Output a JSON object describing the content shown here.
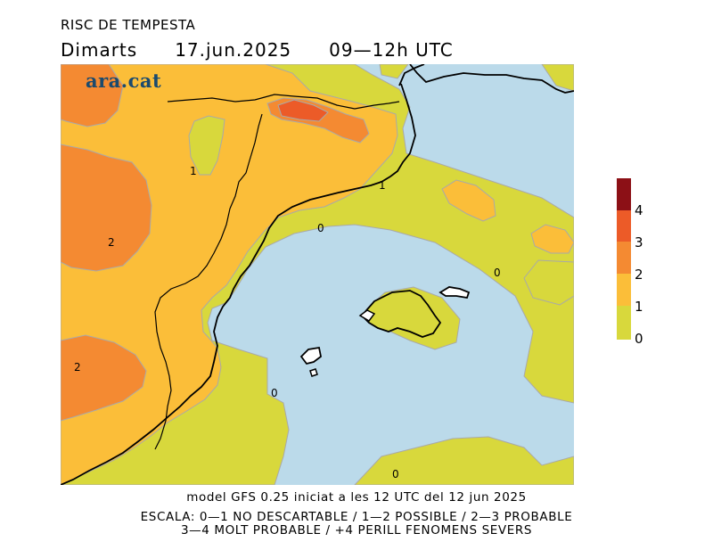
{
  "header": {
    "title": "RISC DE TEMPESTA",
    "day": "Dimarts",
    "date": "17.jun.2025",
    "time_range": "09—12h UTC"
  },
  "logo": {
    "text": "ara.cat"
  },
  "map": {
    "contour_labels": [
      "1",
      "2",
      "2",
      "0",
      "1",
      "0",
      "0",
      "0"
    ],
    "colors": {
      "sea": "#bbdaea",
      "level0": "#d8d83c",
      "level1": "#fbbe39",
      "level2": "#f48a32",
      "level3": "#ec5b28",
      "level4": "#8c1016"
    }
  },
  "legend": {
    "labels": [
      "4",
      "3",
      "2",
      "1",
      "0"
    ]
  },
  "footer": {
    "line1": "model GFS 0.25 iniciat a les 12 UTC del 12 jun 2025",
    "line2": "ESCALA: 0—1 NO DESCARTABLE / 1—2 POSSIBLE / 2—3 PROBABLE",
    "line3": "3—4 MOLT PROBABLE / +4 PERILL FENOMENS SEVERS"
  }
}
